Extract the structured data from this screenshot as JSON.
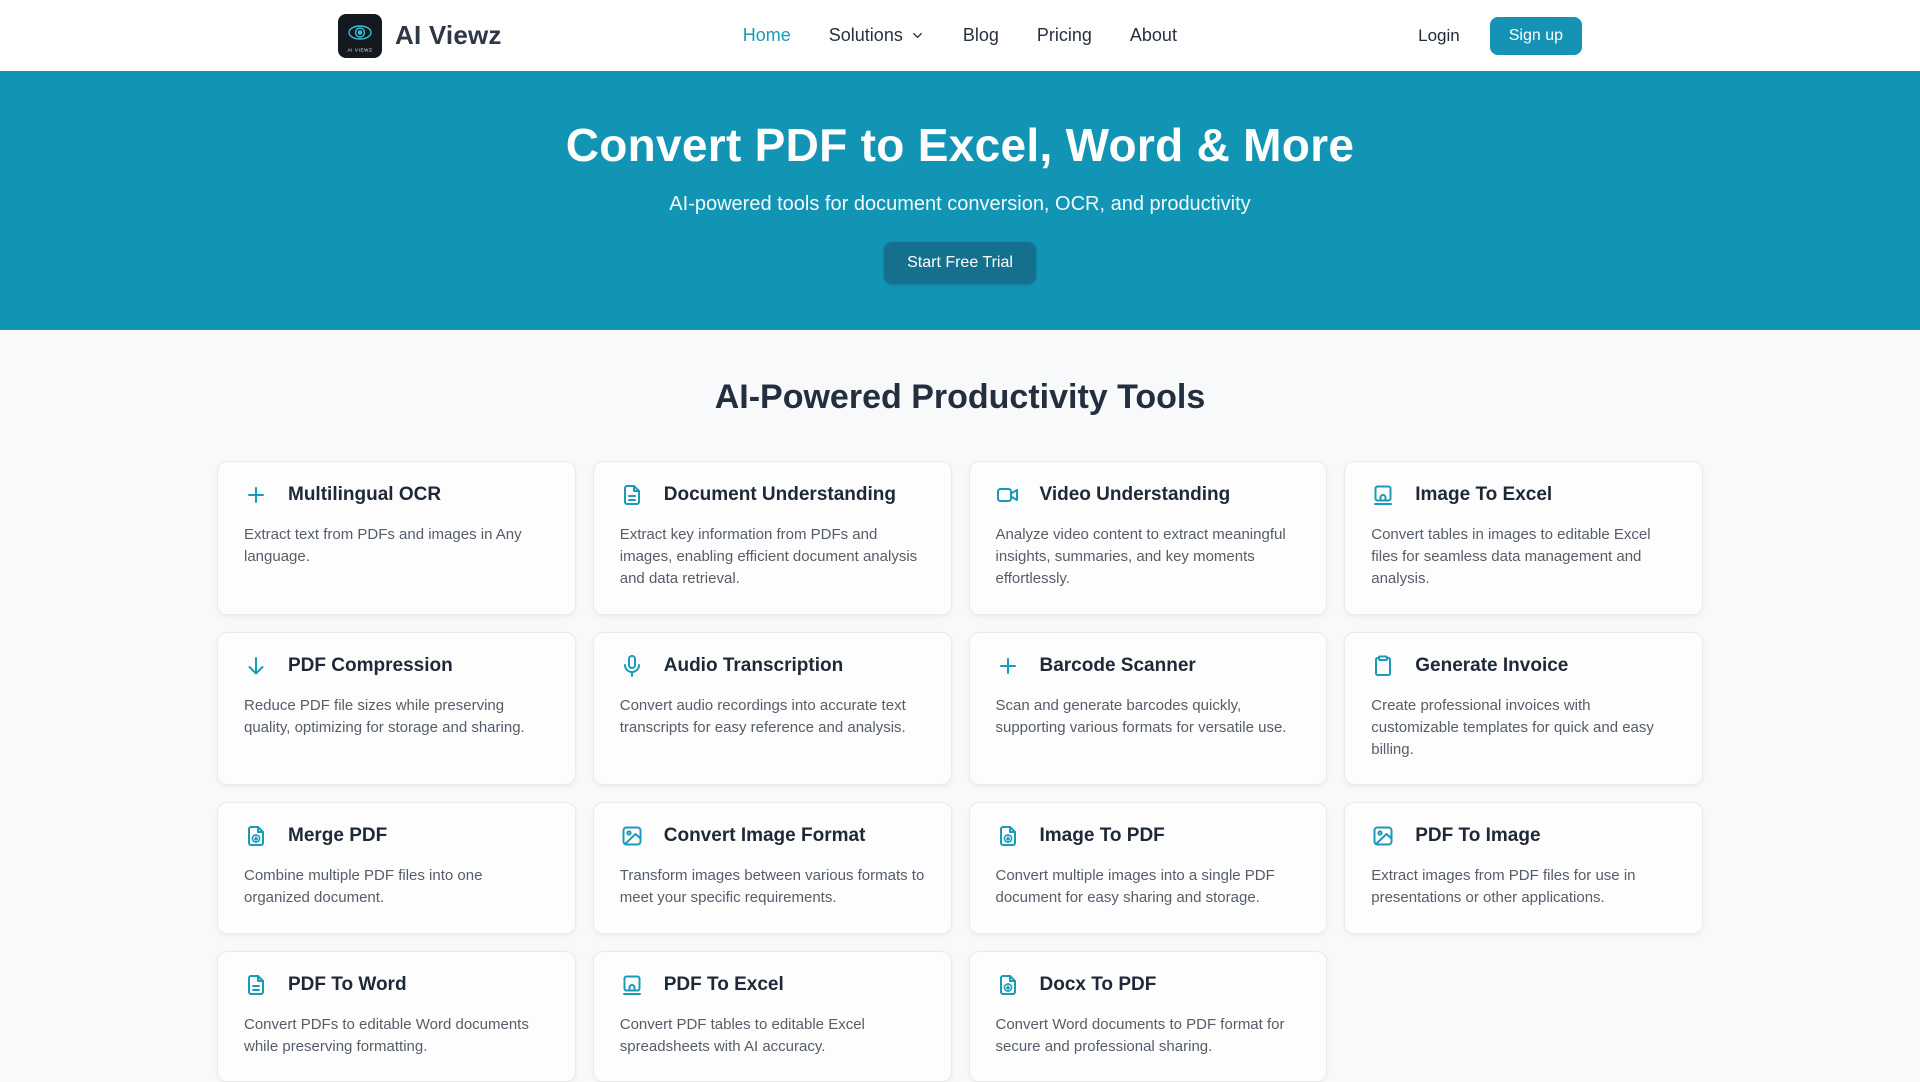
{
  "colors": {
    "accent": "#1b9ab8",
    "hero_bg": "#1295b5",
    "cta_bg": "#15708e",
    "signup_bg": "#1592b4",
    "page_bg": "#f8f9fa"
  },
  "header": {
    "brand_name": "AI Viewz",
    "logo_text": "AI VIEWZ",
    "nav_items": [
      {
        "label": "Home",
        "active": true,
        "has_dropdown": false
      },
      {
        "label": "Solutions",
        "active": false,
        "has_dropdown": true
      },
      {
        "label": "Blog",
        "active": false,
        "has_dropdown": false
      },
      {
        "label": "Pricing",
        "active": false,
        "has_dropdown": false
      },
      {
        "label": "About",
        "active": false,
        "has_dropdown": false
      }
    ],
    "login_label": "Login",
    "signup_label": "Sign up"
  },
  "hero": {
    "title": "Convert PDF to Excel, Word & More",
    "subtitle": "AI-powered tools for document conversion, OCR, and productivity",
    "cta_label": "Start Free Trial"
  },
  "tools": {
    "heading": "AI-Powered Productivity Tools",
    "cards": [
      {
        "icon": "plus-icon",
        "title": "Multilingual OCR",
        "description": "Extract text from PDFs and images in Any language."
      },
      {
        "icon": "document-icon",
        "title": "Document Understanding",
        "description": "Extract key information from PDFs and images, enabling efficient document analysis and data retrieval."
      },
      {
        "icon": "video-camera-icon",
        "title": "Video Understanding",
        "description": "Analyze video content to extract meaningful insights, summaries, and key moments effortlessly."
      },
      {
        "icon": "laptop-icon",
        "title": "Image To Excel",
        "description": "Convert tables in images to editable Excel files for seamless data management and analysis."
      },
      {
        "icon": "arrow-down-icon",
        "title": "PDF Compression",
        "description": "Reduce PDF file sizes while preserving quality, optimizing for storage and sharing."
      },
      {
        "icon": "microphone-icon",
        "title": "Audio Transcription",
        "description": "Convert audio recordings into accurate text transcripts for easy reference and analysis."
      },
      {
        "icon": "plus-icon",
        "title": "Barcode Scanner",
        "description": "Scan and generate barcodes quickly, supporting various formats for versatile use."
      },
      {
        "icon": "clipboard-icon",
        "title": "Generate Invoice",
        "description": "Create professional invoices with customizable templates for quick and easy billing."
      },
      {
        "icon": "file-download-icon",
        "title": "Merge PDF",
        "description": "Combine multiple PDF files into one organized document."
      },
      {
        "icon": "image-icon",
        "title": "Convert Image Format",
        "description": "Transform images between various formats to meet your specific requirements."
      },
      {
        "icon": "file-download-icon",
        "title": "Image To PDF",
        "description": "Convert multiple images into a single PDF document for easy sharing and storage."
      },
      {
        "icon": "image-icon",
        "title": "PDF To Image",
        "description": "Extract images from PDF files for use in presentations or other applications."
      },
      {
        "icon": "document-icon",
        "title": "PDF To Word",
        "description": "Convert PDFs to editable Word documents while preserving formatting."
      },
      {
        "icon": "laptop-icon",
        "title": "PDF To Excel",
        "description": "Convert PDF tables to editable Excel spreadsheets with AI accuracy."
      },
      {
        "icon": "file-download-icon",
        "title": "Docx To PDF",
        "description": "Convert Word documents to PDF format for secure and professional sharing."
      }
    ]
  }
}
